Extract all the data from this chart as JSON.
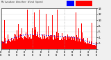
{
  "background_color": "#f0f0f0",
  "plot_bg_color": "#ffffff",
  "bar_color": "#ff0000",
  "median_color": "#0000ff",
  "n_points": 1440,
  "ylim": [
    0,
    14
  ],
  "ytick_positions": [
    0,
    2,
    4,
    6,
    8,
    10,
    12,
    14
  ],
  "ytick_labels": [
    "",
    "2.",
    "4.",
    "6.",
    "8.",
    "10",
    "12",
    "14"
  ],
  "vline_positions": [
    480,
    960
  ],
  "vline_color": "#999999",
  "title_text": "Milwaukee Weather Wind Speed",
  "legend_median_color": "#0000ff",
  "legend_actual_color": "#ff0000",
  "seed": 42
}
